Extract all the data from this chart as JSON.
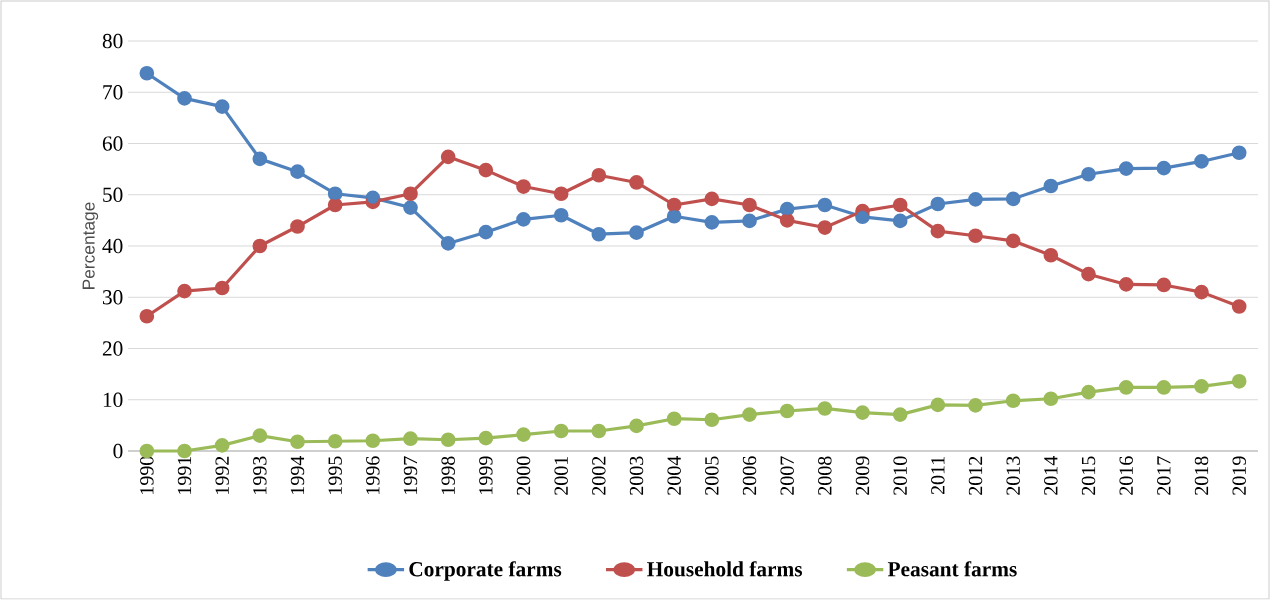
{
  "chart_data": {
    "type": "line",
    "ylabel": "Percentage",
    "categories": [
      "1990",
      "1991",
      "1992",
      "1993",
      "1994",
      "1995",
      "1996",
      "1997",
      "1998",
      "1999",
      "2000",
      "2001",
      "2002",
      "2003",
      "2004",
      "2005",
      "2006",
      "2007",
      "2008",
      "2009",
      "2010",
      "2011",
      "2012",
      "2013",
      "2014",
      "2015",
      "2016",
      "2017",
      "2018",
      "2019"
    ],
    "series": [
      {
        "name": "Corporate farms",
        "color": "#4f81bd",
        "values": [
          73.7,
          68.8,
          67.2,
          57.0,
          54.5,
          50.2,
          49.4,
          47.5,
          40.5,
          42.7,
          45.2,
          46.0,
          42.3,
          42.6,
          45.8,
          44.6,
          44.9,
          47.2,
          48.0,
          45.7,
          44.9,
          48.2,
          49.1,
          49.2,
          51.7,
          54.0,
          55.1,
          55.2,
          56.5,
          58.2
        ]
      },
      {
        "name": "Household farms",
        "color": "#c0504d",
        "values": [
          26.3,
          31.2,
          31.8,
          40.0,
          43.8,
          48.0,
          48.6,
          50.2,
          57.4,
          54.8,
          51.6,
          50.2,
          53.8,
          52.4,
          48.0,
          49.2,
          48.0,
          45.0,
          43.6,
          46.8,
          48.0,
          42.9,
          42.0,
          41.0,
          38.2,
          34.5,
          32.5,
          32.4,
          31.0,
          28.2
        ]
      },
      {
        "name": "Peasant farms",
        "color": "#9bbb59",
        "values": [
          0,
          0,
          1.1,
          3.0,
          1.8,
          1.9,
          2.0,
          2.4,
          2.2,
          2.5,
          3.2,
          3.9,
          3.9,
          4.9,
          6.3,
          6.1,
          7.1,
          7.8,
          8.3,
          7.5,
          7.1,
          9.0,
          8.9,
          9.8,
          10.2,
          11.5,
          12.4,
          12.4,
          12.6,
          13.6
        ]
      }
    ],
    "ylim": [
      0,
      80
    ],
    "yticks": [
      0,
      10,
      20,
      30,
      40,
      50,
      60,
      70,
      80
    ],
    "grid": "y",
    "legend": "bottom",
    "marker": "circle",
    "line_style": "solid"
  }
}
